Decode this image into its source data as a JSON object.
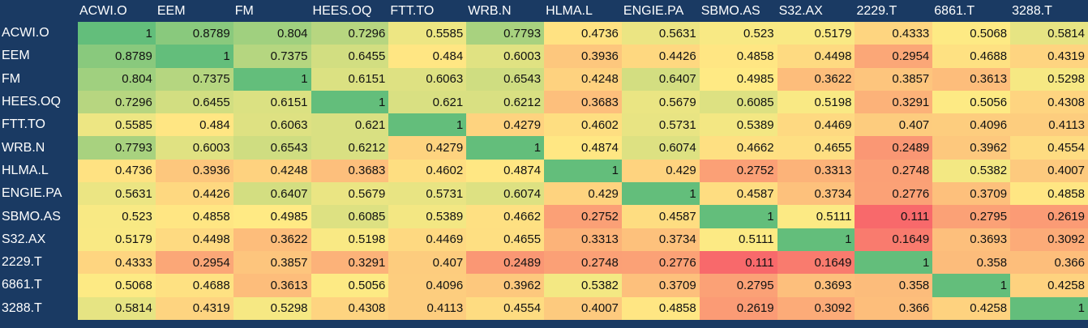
{
  "chart_data": {
    "type": "heatmap",
    "title": "",
    "x_labels": [
      "ACWI.O",
      "EEM",
      "FM",
      "HEES.OQ",
      "FTT.TO",
      "WRB.N",
      "HLMA.L",
      "ENGIE.PA",
      "SBMO.AS",
      "S32.AX",
      "2229.T",
      "6861.T",
      "3288.T"
    ],
    "y_labels": [
      "ACWI.O",
      "EEM",
      "FM",
      "HEES.OQ",
      "FTT.TO",
      "WRB.N",
      "HLMA.L",
      "ENGIE.PA",
      "SBMO.AS",
      "S32.AX",
      "2229.T",
      "6861.T",
      "3288.T"
    ],
    "values": [
      [
        "1",
        "0.8789",
        "0.804",
        "0.7296",
        "0.5585",
        "0.7793",
        "0.4736",
        "0.5631",
        "0.523",
        "0.5179",
        "0.4333",
        "0.5068",
        "0.5814"
      ],
      [
        "0.8789",
        "1",
        "0.7375",
        "0.6455",
        "0.484",
        "0.6003",
        "0.3936",
        "0.4426",
        "0.4858",
        "0.4498",
        "0.2954",
        "0.4688",
        "0.4319"
      ],
      [
        "0.804",
        "0.7375",
        "1",
        "0.6151",
        "0.6063",
        "0.6543",
        "0.4248",
        "0.6407",
        "0.4985",
        "0.3622",
        "0.3857",
        "0.3613",
        "0.5298"
      ],
      [
        "0.7296",
        "0.6455",
        "0.6151",
        "1",
        "0.621",
        "0.6212",
        "0.3683",
        "0.5679",
        "0.6085",
        "0.5198",
        "0.3291",
        "0.5056",
        "0.4308"
      ],
      [
        "0.5585",
        "0.484",
        "0.6063",
        "0.621",
        "1",
        "0.4279",
        "0.4602",
        "0.5731",
        "0.5389",
        "0.4469",
        "0.407",
        "0.4096",
        "0.4113"
      ],
      [
        "0.7793",
        "0.6003",
        "0.6543",
        "0.6212",
        "0.4279",
        "1",
        "0.4874",
        "0.6074",
        "0.4662",
        "0.4655",
        "0.2489",
        "0.3962",
        "0.4554"
      ],
      [
        "0.4736",
        "0.3936",
        "0.4248",
        "0.3683",
        "0.4602",
        "0.4874",
        "1",
        "0.429",
        "0.2752",
        "0.3313",
        "0.2748",
        "0.5382",
        "0.4007"
      ],
      [
        "0.5631",
        "0.4426",
        "0.6407",
        "0.5679",
        "0.5731",
        "0.6074",
        "0.429",
        "1",
        "0.4587",
        "0.3734",
        "0.2776",
        "0.3709",
        "0.4858"
      ],
      [
        "0.523",
        "0.4858",
        "0.4985",
        "0.6085",
        "0.5389",
        "0.4662",
        "0.2752",
        "0.4587",
        "1",
        "0.5111",
        "0.111",
        "0.2795",
        "0.2619"
      ],
      [
        "0.5179",
        "0.4498",
        "0.3622",
        "0.5198",
        "0.4469",
        "0.4655",
        "0.3313",
        "0.3734",
        "0.5111",
        "1",
        "0.1649",
        "0.3693",
        "0.3092"
      ],
      [
        "0.4333",
        "0.2954",
        "0.3857",
        "0.3291",
        "0.407",
        "0.2489",
        "0.2748",
        "0.2776",
        "0.111",
        "0.1649",
        "1",
        "0.358",
        "0.366"
      ],
      [
        "0.5068",
        "0.4688",
        "0.3613",
        "0.5056",
        "0.4096",
        "0.3962",
        "0.5382",
        "0.3709",
        "0.2795",
        "0.3693",
        "0.358",
        "1",
        "0.4258"
      ],
      [
        "0.5814",
        "0.4319",
        "0.5298",
        "0.4308",
        "0.4113",
        "0.4554",
        "0.4007",
        "0.4858",
        "0.2619",
        "0.3092",
        "0.366",
        "0.4258",
        "1"
      ]
    ],
    "color_scale": {
      "low": "#f8696b",
      "mid": "#ffeb84",
      "high": "#63be7b",
      "min_value": 0.111,
      "mid_value": 0.5,
      "max_value": 1
    },
    "header_background": "#1a3a63",
    "header_text_color": "#ffffff"
  }
}
